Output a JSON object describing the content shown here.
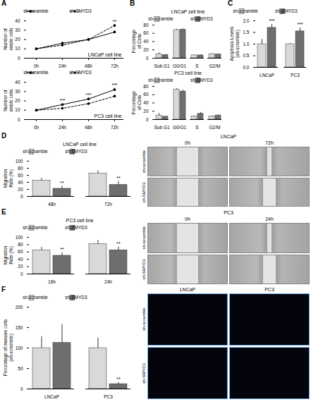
{
  "chart_data": [
    {
      "panel": "A",
      "type": "line",
      "title": "LNCaP cell line",
      "y_label": "Number of viable cells",
      "categories": [
        "0h",
        "24h",
        "48h",
        "72h"
      ],
      "series": [
        {
          "name": "sh-scramble",
          "color": "#000000",
          "line_style": "solid",
          "marker": "square",
          "values": [
            10,
            16,
            20,
            28
          ],
          "errors": [
            0.8,
            1.2,
            1.2,
            1.5
          ]
        },
        {
          "name": "sh-SMYD3",
          "color": "#000000",
          "line_style": "dashed",
          "marker": "circle",
          "values": [
            10,
            14,
            20,
            35
          ],
          "errors": [
            0.8,
            1.5,
            1.2,
            1.2
          ]
        }
      ],
      "ylim": [
        0,
        40
      ],
      "yticks": [
        0,
        10,
        20,
        30,
        40
      ],
      "legend": "top",
      "annotations": [
        {
          "text": "**",
          "x": "72h",
          "series": "sh-SMYD3"
        }
      ]
    },
    {
      "panel": "A",
      "type": "line",
      "title": "PC3 cell line",
      "y_label": "Number of viable cells",
      "categories": [
        "0h",
        "24h",
        "48h",
        "72h"
      ],
      "series": [
        {
          "name": "sh-scramble",
          "color": "#000000",
          "line_style": "solid",
          "marker": "square",
          "values": [
            10,
            16,
            22,
            32
          ],
          "errors": [
            0.8,
            1,
            1,
            1.5
          ]
        },
        {
          "name": "sh-SMYD3",
          "color": "#000000",
          "line_style": "dashed",
          "marker": "circle",
          "values": [
            10,
            12,
            17,
            25
          ],
          "errors": [
            0.8,
            1,
            1,
            1.2
          ]
        }
      ],
      "ylim": [
        0,
        40
      ],
      "yticks": [
        0,
        10,
        20,
        30,
        40
      ],
      "legend": "top",
      "annotations": [
        {
          "text": "***",
          "x": "24h",
          "series": "sh-scramble"
        },
        {
          "text": "***",
          "x": "48h",
          "series": "sh-scramble"
        },
        {
          "text": "***",
          "x": "72h",
          "series": "sh-scramble"
        }
      ]
    },
    {
      "panel": "B",
      "type": "bar",
      "title": "LNCaP cell line",
      "y_label": "Percentage of Cells",
      "categories": [
        "Sub G1",
        "G0/G1",
        "S",
        "G2/M"
      ],
      "series": [
        {
          "name": "sh-scramble",
          "color": "#d9d9d9",
          "values": [
            10,
            68,
            7,
            10
          ],
          "errors": [
            3,
            2,
            1,
            1
          ]
        },
        {
          "name": "sh-SMYD3",
          "color": "#6e6e6e",
          "values": [
            8,
            69,
            7,
            9
          ],
          "errors": [
            1,
            2,
            1,
            1
          ]
        }
      ],
      "ylim": [
        0,
        80
      ],
      "yticks": [
        0,
        20,
        40,
        60,
        80
      ],
      "legend": "top"
    },
    {
      "panel": "B",
      "type": "bar",
      "title": "PC3 cell line",
      "y_label": "Percentage of Cells",
      "categories": [
        "Sub G1",
        "G0/G1",
        "S",
        "G2/M"
      ],
      "series": [
        {
          "name": "sh-scramble",
          "color": "#d9d9d9",
          "values": [
            10,
            72,
            8,
            8
          ],
          "errors": [
            5,
            3,
            1,
            1
          ]
        },
        {
          "name": "sh-SMYD3",
          "color": "#6e6e6e",
          "values": [
            7,
            68,
            14,
            10
          ],
          "errors": [
            1,
            3,
            3,
            1
          ]
        }
      ],
      "ylim": [
        0,
        80
      ],
      "yticks": [
        0,
        20,
        40,
        60,
        80
      ],
      "legend": "top"
    },
    {
      "panel": "C",
      "type": "bar",
      "y_label": "Apoptosis Levels (sh-scramble)",
      "categories": [
        "LNCaP",
        "PC3"
      ],
      "series": [
        {
          "name": "sh-scramble",
          "color": "#d9d9d9",
          "values": [
            1.0,
            1.0
          ],
          "errors": [
            0.2,
            0.03
          ]
        },
        {
          "name": "sh-SMYD3",
          "color": "#6e6e6e",
          "values": [
            1.7,
            1.55
          ],
          "errors": [
            0.15,
            0.15
          ]
        }
      ],
      "ylim": [
        0,
        2
      ],
      "yticks": [
        {
          "value": 0,
          "label": "0.0"
        },
        0.5,
        {
          "value": 1,
          "label": "1.0"
        },
        1.5,
        {
          "value": 2,
          "label": "2.0"
        }
      ],
      "legend": "top",
      "annotations": [
        {
          "text": "***",
          "x": "LNCaP",
          "series": "sh-SMYD3"
        },
        {
          "text": "***",
          "x": "PC3",
          "series": "sh-SMYD3"
        }
      ]
    },
    {
      "panel": "D",
      "type": "bar",
      "title": "LNCaP cell line",
      "y_label": "Migration Rate (%)",
      "categories": [
        "48h",
        "72h"
      ],
      "series": [
        {
          "name": "sh-scramble",
          "color": "#d9d9d9",
          "values": [
            45,
            65
          ],
          "errors": [
            7,
            8
          ]
        },
        {
          "name": "sh-SMYD3",
          "color": "#6e6e6e",
          "values": [
            22,
            33
          ],
          "errors": [
            8,
            10
          ]
        }
      ],
      "ylim": [
        0,
        100
      ],
      "yticks": [
        0,
        20,
        40,
        60,
        80,
        100
      ],
      "legend": "top",
      "annotations": [
        {
          "text": "**",
          "x": "48h",
          "series": "sh-SMYD3"
        },
        {
          "text": "**",
          "x": "72h",
          "series": "sh-SMYD3"
        }
      ]
    },
    {
      "panel": "E",
      "type": "bar",
      "title": "PC3 cell line",
      "y_label": "Migration Rate (%)",
      "categories": [
        "16h",
        "24h"
      ],
      "series": [
        {
          "name": "sh-scramble",
          "color": "#d9d9d9",
          "values": [
            65,
            82
          ],
          "errors": [
            8,
            10
          ]
        },
        {
          "name": "sh-SMYD3",
          "color": "#6e6e6e",
          "values": [
            50,
            65
          ],
          "errors": [
            8,
            9
          ]
        }
      ],
      "ylim": [
        0,
        100
      ],
      "yticks": [
        0,
        20,
        40,
        60,
        80,
        100
      ],
      "legend": "top",
      "annotations": [
        {
          "text": "**",
          "x": "16h",
          "series": "sh-SMYD3"
        },
        {
          "text": "**",
          "x": "24h",
          "series": "sh-SMYD3"
        }
      ]
    },
    {
      "panel": "F",
      "type": "bar",
      "y_label": "Percentage of invasive cells (sh-scramble)",
      "categories": [
        "LNCaP",
        "PC3"
      ],
      "series": [
        {
          "name": "sh-scramble",
          "color": "#d9d9d9",
          "values": [
            100,
            100
          ],
          "errors": [
            28,
            25
          ]
        },
        {
          "name": "sh-SMYD3",
          "color": "#6e6e6e",
          "values": [
            113,
            12
          ],
          "errors": [
            45,
            4
          ]
        }
      ],
      "ylim": [
        0,
        200
      ],
      "yticks": [
        0,
        50,
        100,
        150,
        200
      ],
      "legend": "top",
      "annotations": [
        {
          "text": "**",
          "x": "PC3",
          "series": "sh-SMYD3"
        }
      ]
    }
  ],
  "images": [
    {
      "panel": "D",
      "title": "LNCaP",
      "columns": [
        "0h",
        "72h"
      ],
      "rows": [
        "sh-scramble",
        "sh-SMYD3"
      ]
    },
    {
      "panel": "E",
      "title": "PC3",
      "columns": [
        "0h",
        "24h"
      ],
      "rows": [
        "sh-scramble",
        "sh-SMYD3"
      ]
    },
    {
      "panel": "F",
      "columns": [
        "LNCaP",
        "PC3"
      ],
      "rows": [
        "sh-scramble",
        "sh-SMYD3"
      ]
    }
  ]
}
